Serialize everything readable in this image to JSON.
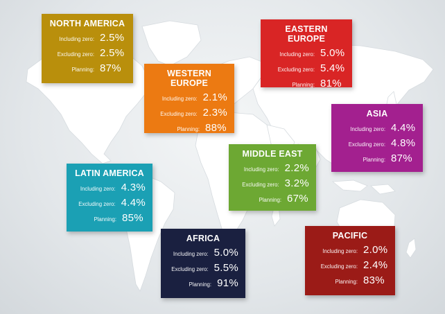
{
  "colors": {
    "north_america": "#b98f0c",
    "eastern_europe": "#d92525",
    "western_europe": "#ec7a12",
    "asia": "#a3208f",
    "latin_america": "#1ba0b4",
    "middle_east": "#6da833",
    "africa": "#1a2040",
    "pacific": "#9b1b17"
  },
  "regions": {
    "north_america": {
      "name": "NORTH AMERICA",
      "including_label": "Including zero:",
      "including": "2.5%",
      "excluding_label": "Excluding zero:",
      "excluding": "2.5%",
      "planning_label": "Planning:",
      "planning": "87%"
    },
    "eastern_europe": {
      "name": "EASTERN EUROPE",
      "including_label": "Including zero:",
      "including": "5.0%",
      "excluding_label": "Excluding zero:",
      "excluding": "5.4%",
      "planning_label": "Planning:",
      "planning": "81%"
    },
    "western_europe": {
      "name": "WESTERN EUROPE",
      "including_label": "Including zero:",
      "including": "2.1%",
      "excluding_label": "Excluding zero:",
      "excluding": "2.3%",
      "planning_label": "Planning:",
      "planning": "88%"
    },
    "asia": {
      "name": "ASIA",
      "including_label": "Including zero:",
      "including": "4.4%",
      "excluding_label": "Excluding zero:",
      "excluding": "4.8%",
      "planning_label": "Planning:",
      "planning": "87%"
    },
    "latin_america": {
      "name": "LATIN AMERICA",
      "including_label": "Including zero:",
      "including": "4.3%",
      "excluding_label": "Excluding zero:",
      "excluding": "4.4%",
      "planning_label": "Planning:",
      "planning": "85%"
    },
    "middle_east": {
      "name": "MIDDLE EAST",
      "including_label": "Including zero:",
      "including": "2.2%",
      "excluding_label": "Excluding zero:",
      "excluding": "3.2%",
      "planning_label": "Planning:",
      "planning": "67%"
    },
    "africa": {
      "name": "AFRICA",
      "including_label": "Including zero:",
      "including": "5.0%",
      "excluding_label": "Excluding zero:",
      "excluding": "5.5%",
      "planning_label": "Planning:",
      "planning": "91%"
    },
    "pacific": {
      "name": "PACIFIC",
      "including_label": "Including zero:",
      "including": "2.0%",
      "excluding_label": "Excluding zero:",
      "excluding": "2.4%",
      "planning_label": "Planning:",
      "planning": "83%"
    }
  }
}
